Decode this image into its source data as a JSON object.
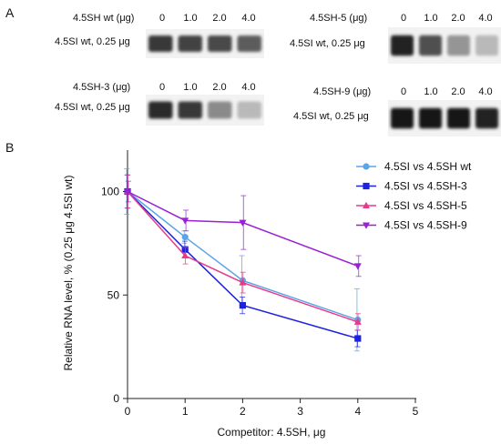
{
  "panels": {
    "a": "A",
    "b": "B"
  },
  "blots": [
    {
      "id": "wt",
      "competitor_label": "4.5SH wt (μg)",
      "probe_label": "4.5SI wt, 0.25 μg",
      "doses": [
        "0",
        "1.0",
        "2.0",
        "4.0"
      ],
      "band_intensity": [
        0.85,
        0.8,
        0.78,
        0.7
      ]
    },
    {
      "id": "sh5",
      "competitor_label": "4.5SH-5 (μg)",
      "probe_label": "4.5SI wt, 0.25 μg",
      "doses": [
        "0",
        "1.0",
        "2.0",
        "4.0"
      ],
      "band_intensity": [
        0.95,
        0.75,
        0.45,
        0.3
      ]
    },
    {
      "id": "sh3",
      "competitor_label": "4.5SH-3 (μg)",
      "probe_label": "4.5SI wt, 0.25 μg",
      "doses": [
        "0",
        "1.0",
        "2.0",
        "4.0"
      ],
      "band_intensity": [
        0.9,
        0.85,
        0.5,
        0.3
      ]
    },
    {
      "id": "sh9",
      "competitor_label": "4.5SH-9 (μg)",
      "probe_label": "4.5SI wt, 0.25 μg",
      "doses": [
        "0",
        "1.0",
        "2.0",
        "4.0"
      ],
      "band_intensity": [
        1.0,
        1.0,
        1.0,
        0.95
      ]
    }
  ],
  "chart_data": {
    "type": "line",
    "xlabel": "Competitor: 4.5SH, μg",
    "ylabel": "Relative RNA level, % (0.25 μg 4.5SI wt)",
    "xlim": [
      0,
      5
    ],
    "ylim": [
      0,
      120
    ],
    "xticks": [
      "0",
      "1",
      "2",
      "3",
      "4",
      "5"
    ],
    "yticks": [
      "0",
      "50",
      "100"
    ],
    "legend_position": "top-right",
    "x": [
      0,
      1,
      2,
      4
    ],
    "series": [
      {
        "name": "4.5SI vs 4.5SH wt",
        "color": "#5aa5e6",
        "marker": "circle",
        "values": [
          100,
          78,
          57,
          38
        ],
        "errors": [
          11,
          3,
          12,
          15
        ]
      },
      {
        "name": "4.5SI vs 4.5SH-3",
        "color": "#1c22e0",
        "marker": "square",
        "values": [
          100,
          72,
          45,
          29
        ],
        "errors": [
          8,
          4,
          4,
          4
        ]
      },
      {
        "name": "4.5SI vs 4.5SH-5",
        "color": "#e63a8c",
        "marker": "triangle",
        "values": [
          100,
          69,
          56,
          37
        ],
        "errors": [
          8,
          4,
          5,
          4
        ]
      },
      {
        "name": "4.5SI vs 4.5SH-9",
        "color": "#9a1fd6",
        "marker": "triangle-down",
        "values": [
          100,
          86,
          85,
          64
        ],
        "errors": [
          5,
          5,
          13,
          5
        ]
      }
    ]
  }
}
